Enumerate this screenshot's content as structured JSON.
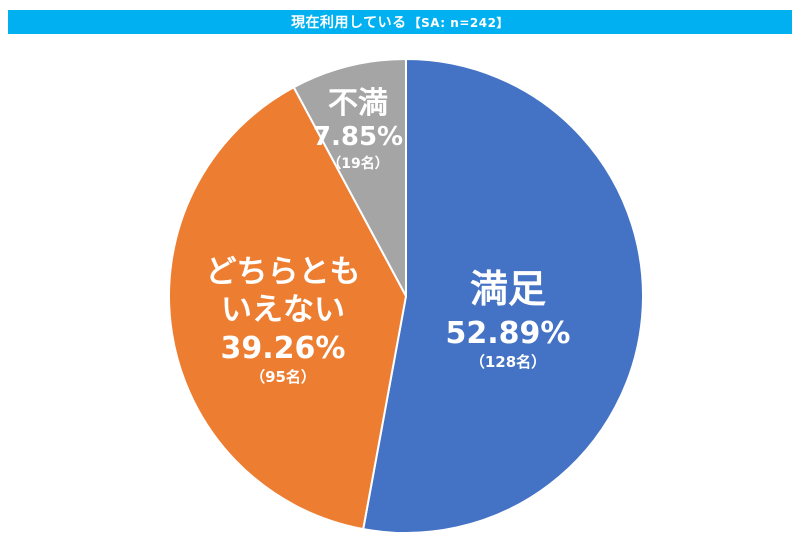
{
  "chart_data": {
    "type": "pie",
    "title": "現在利用している",
    "subtitle": "【SA: n=242】",
    "slices": [
      {
        "name": "満足",
        "value": 52.89,
        "percent_label": "52.89%",
        "count_label": "（128名）",
        "color": "#4472c4"
      },
      {
        "name_lines": [
          "どちらとも",
          "いえない"
        ],
        "value": 39.26,
        "percent_label": "39.26%",
        "count_label": "（95名）",
        "color": "#ed7d31"
      },
      {
        "name": "不満",
        "value": 7.85,
        "percent_label": "7.85%",
        "count_label": "（19名）",
        "color": "#a5a5a5"
      }
    ]
  }
}
